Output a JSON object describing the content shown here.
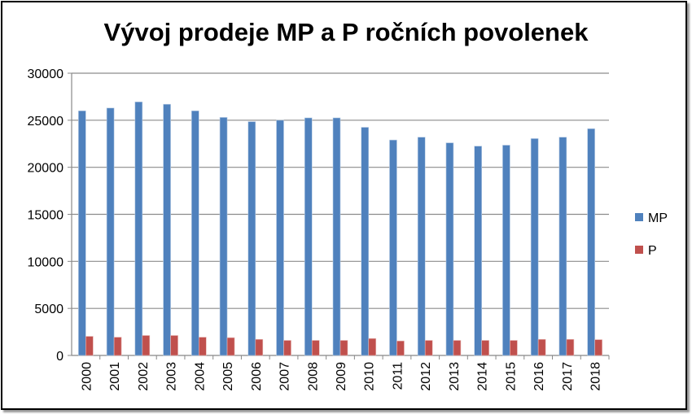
{
  "chart_data": {
    "type": "bar",
    "title": "Vývoj prodeje MP a P ročních povolenek",
    "xlabel": "",
    "ylabel": "",
    "ylim": [
      0,
      30000
    ],
    "yticks": [
      "0",
      "5000",
      "10000",
      "15000",
      "20000",
      "25000",
      "30000"
    ],
    "categories": [
      "2000",
      "2001",
      "2002",
      "2003",
      "2004",
      "2005",
      "2006",
      "2007",
      "2008",
      "2009",
      "2010",
      "2011",
      "2012",
      "2013",
      "2014",
      "2015",
      "2016",
      "2017",
      "2018"
    ],
    "series": [
      {
        "name": "MP",
        "color": "#4F81BD",
        "values": [
          26000,
          26300,
          26950,
          26700,
          26000,
          25300,
          24850,
          25000,
          25250,
          25250,
          24250,
          22900,
          23200,
          22600,
          22250,
          22350,
          23050,
          23200,
          24100
        ]
      },
      {
        "name": "P",
        "color": "#C0504D",
        "values": [
          2030,
          1940,
          2120,
          2120,
          1940,
          1890,
          1710,
          1600,
          1600,
          1600,
          1800,
          1540,
          1600,
          1600,
          1600,
          1600,
          1710,
          1710,
          1680
        ]
      }
    ],
    "grid": true,
    "legend": "right"
  }
}
